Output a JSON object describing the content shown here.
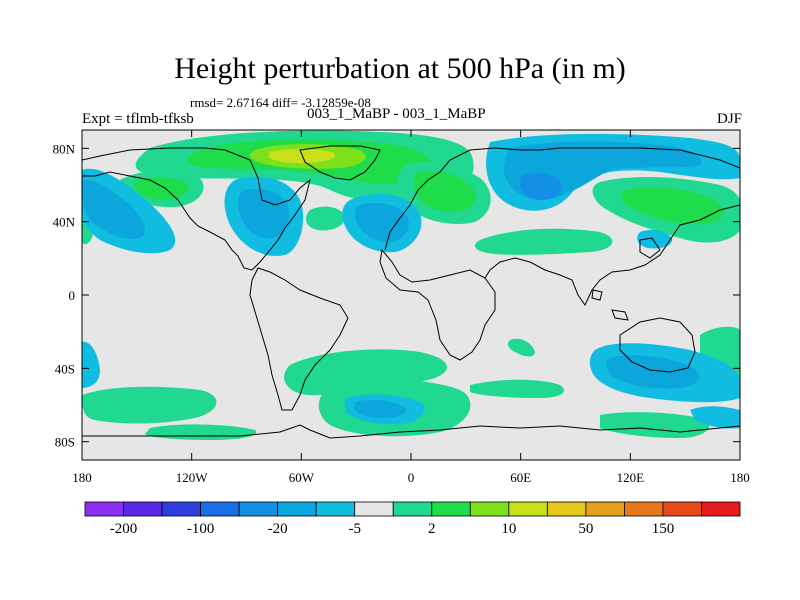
{
  "title": "Height perturbation at 500 hPa (in m)",
  "stats": "rmsd= 2.67164 diff= -3.12859e-08",
  "left_label": "Expt = tflmb-tfksb",
  "center_label": "003_1_MaBP - 003_1_MaBP",
  "right_label": "DJF",
  "map": {
    "lon_range": [
      -180,
      180
    ],
    "lat_range": [
      -90,
      90
    ],
    "lat_ticks": [
      {
        "value": 80,
        "label": "80N"
      },
      {
        "value": 40,
        "label": "40N"
      },
      {
        "value": 0,
        "label": "0"
      },
      {
        "value": -40,
        "label": "40S"
      },
      {
        "value": -80,
        "label": "80S"
      }
    ],
    "lon_ticks": [
      {
        "value": -180,
        "label": "180"
      },
      {
        "value": -120,
        "label": "120W"
      },
      {
        "value": -60,
        "label": "60W"
      },
      {
        "value": 0,
        "label": "0"
      },
      {
        "value": 60,
        "label": "60E"
      },
      {
        "value": 120,
        "label": "120E"
      },
      {
        "value": 180,
        "label": "180"
      }
    ]
  },
  "colorbar": {
    "colors": [
      "#8c30f0",
      "#5a28e8",
      "#2f3ee0",
      "#1c6ee6",
      "#148fe6",
      "#0aa6dc",
      "#10bde0",
      "#e6e6e6",
      "#20d890",
      "#1edc4a",
      "#7ce01a",
      "#c8e01a",
      "#e6c81a",
      "#e6a01a",
      "#e6781a",
      "#e64a1a",
      "#e61a1a"
    ],
    "labels": [
      "-200",
      "-100",
      "-20",
      "-5",
      "2",
      "10",
      "50",
      "150"
    ]
  },
  "colors": {
    "neutral": "#e6e6e6",
    "pos_weak": "#20d890",
    "pos_mid": "#1edc4a",
    "pos_strong": "#7ce01a",
    "pos_peak": "#c8e01a",
    "neg_weak": "#10bde0",
    "neg_mid": "#0aa6dc",
    "neg_strong": "#148fe6"
  }
}
